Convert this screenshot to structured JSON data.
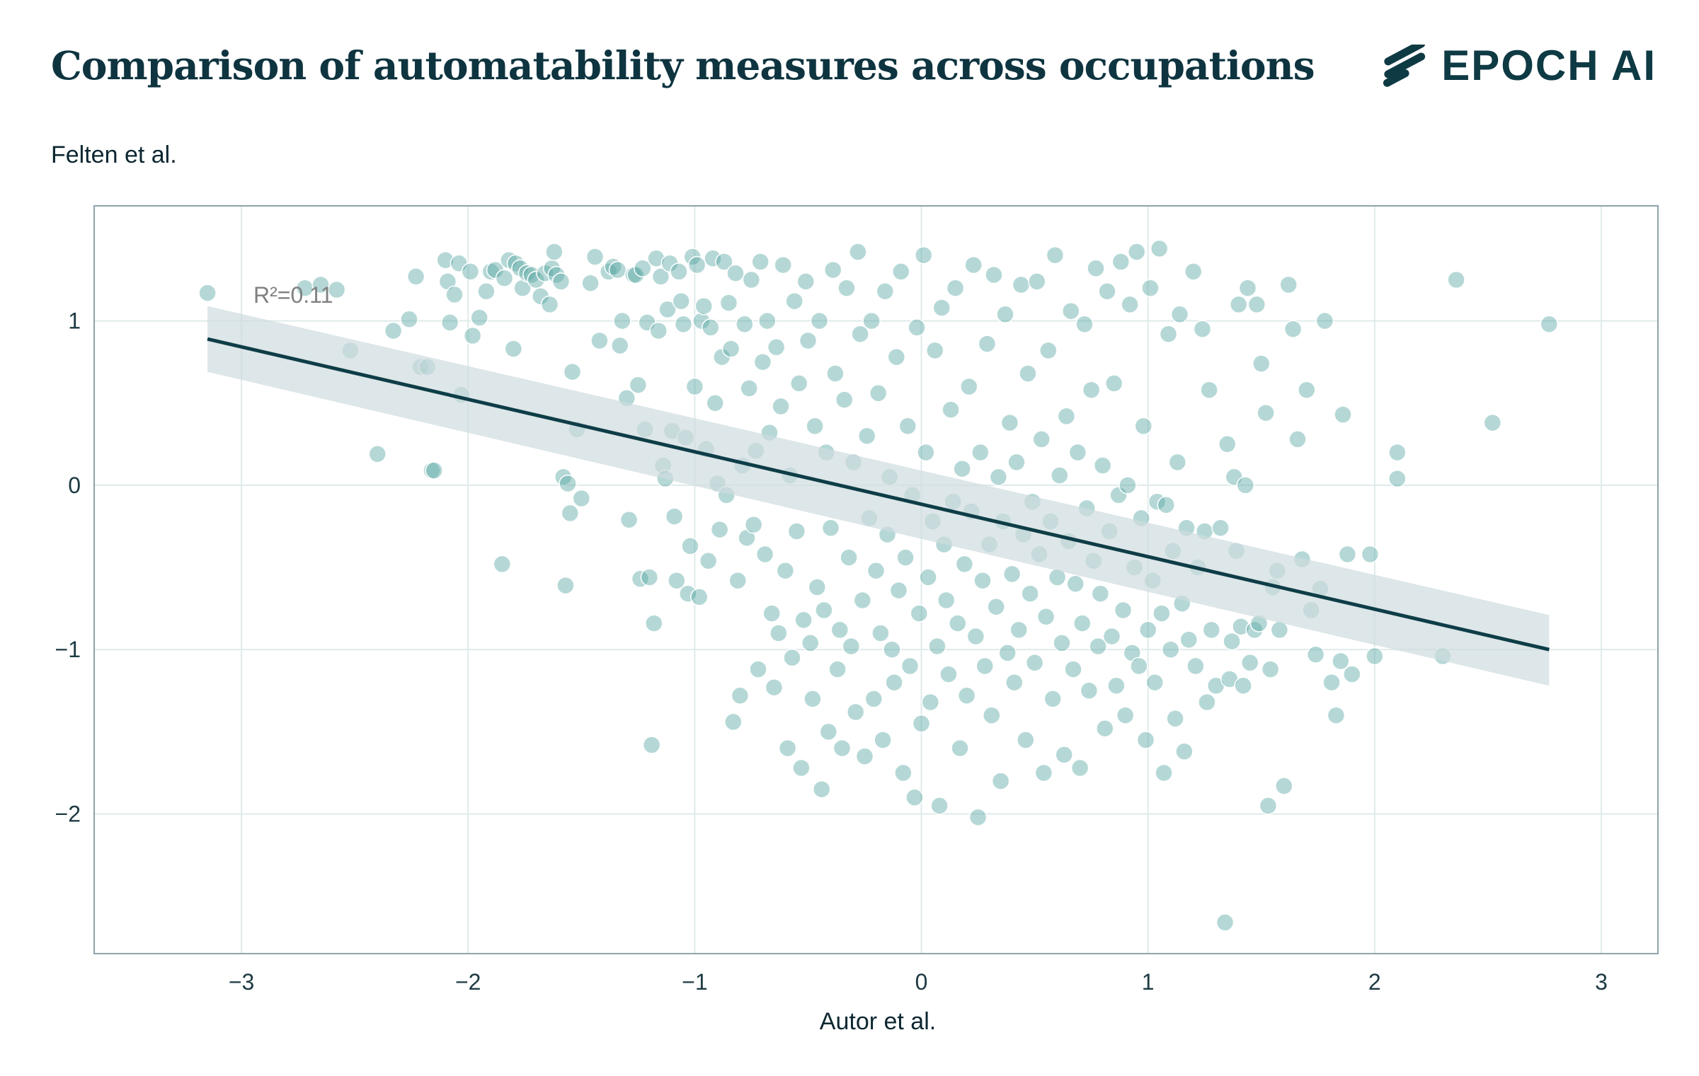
{
  "header": {
    "title": "Comparison of automatability measures across occupations",
    "logo_text": "EPOCH AI"
  },
  "chart_data": {
    "type": "scatter",
    "title": "Comparison of automatability measures across occupations",
    "xlabel": "Autor et al.",
    "ylabel": "Felten et al.",
    "xlim": [
      -3.65,
      3.25
    ],
    "ylim": [
      -2.85,
      1.7
    ],
    "xticks": [
      -3,
      -2,
      -1,
      0,
      1,
      2,
      3
    ],
    "yticks": [
      1,
      0,
      -1,
      -2
    ],
    "x_tick_labels": [
      "−3",
      "−2",
      "−1",
      "0",
      "1",
      "2",
      "3"
    ],
    "y_tick_labels": [
      "1",
      "0",
      "−1",
      "−2"
    ],
    "annotation": "R²=0.11",
    "grid": true,
    "point_color": "#5aa9a5",
    "line_color": "#0e3d47",
    "band_color": "#cfdcde",
    "regression": {
      "x": [
        -3.15,
        2.77
      ],
      "y": [
        0.89,
        -1.0
      ]
    },
    "confidence_band": {
      "x": [
        -3.15,
        2.77
      ],
      "upper": [
        1.09,
        -0.79
      ],
      "lower": [
        0.69,
        -1.22
      ]
    },
    "points": [
      [
        -3.15,
        1.17
      ],
      [
        -2.72,
        1.2
      ],
      [
        -2.65,
        1.22
      ],
      [
        -2.58,
        1.19
      ],
      [
        -2.52,
        0.82
      ],
      [
        -2.4,
        0.19
      ],
      [
        -2.33,
        0.94
      ],
      [
        -2.26,
        1.01
      ],
      [
        -2.23,
        1.27
      ],
      [
        -2.21,
        0.72
      ],
      [
        -2.18,
        0.72
      ],
      [
        -2.16,
        0.09
      ],
      [
        -2.15,
        0.09
      ],
      [
        -2.1,
        1.37
      ],
      [
        -2.09,
        1.24
      ],
      [
        -2.08,
        0.99
      ],
      [
        -2.06,
        1.16
      ],
      [
        -2.04,
        1.35
      ],
      [
        -2.03,
        0.55
      ],
      [
        -1.99,
        1.3
      ],
      [
        -1.98,
        0.91
      ],
      [
        -1.95,
        1.02
      ],
      [
        -1.92,
        1.18
      ],
      [
        -1.9,
        1.3
      ],
      [
        -1.88,
        1.31
      ],
      [
        -1.85,
        -0.48
      ],
      [
        -1.84,
        1.26
      ],
      [
        -1.82,
        1.37
      ],
      [
        -1.8,
        0.83
      ],
      [
        -1.79,
        1.35
      ],
      [
        -1.77,
        1.32
      ],
      [
        -1.76,
        1.2
      ],
      [
        -1.74,
        1.29
      ],
      [
        -1.72,
        1.28
      ],
      [
        -1.7,
        1.25
      ],
      [
        -1.68,
        1.15
      ],
      [
        -1.66,
        1.29
      ],
      [
        -1.64,
        1.1
      ],
      [
        -1.63,
        1.32
      ],
      [
        -1.62,
        1.42
      ],
      [
        -1.61,
        1.28
      ],
      [
        -1.59,
        1.24
      ],
      [
        -1.58,
        0.05
      ],
      [
        -1.57,
        -0.61
      ],
      [
        -1.56,
        0.01
      ],
      [
        -1.55,
        -0.17
      ],
      [
        -1.54,
        0.69
      ],
      [
        -1.52,
        0.34
      ],
      [
        -1.5,
        -0.08
      ],
      [
        -1.46,
        1.23
      ],
      [
        -1.44,
        1.39
      ],
      [
        -1.42,
        0.88
      ],
      [
        -1.38,
        1.3
      ],
      [
        -1.36,
        1.33
      ],
      [
        -1.34,
        1.31
      ],
      [
        -1.33,
        0.85
      ],
      [
        -1.32,
        1.0
      ],
      [
        -1.3,
        0.53
      ],
      [
        -1.29,
        -0.21
      ],
      [
        -1.27,
        1.28
      ],
      [
        -1.26,
        1.28
      ],
      [
        -1.25,
        0.61
      ],
      [
        -1.24,
        -0.57
      ],
      [
        -1.23,
        1.32
      ],
      [
        -1.22,
        0.34
      ],
      [
        -1.21,
        0.99
      ],
      [
        -1.2,
        -0.56
      ],
      [
        -1.19,
        -1.58
      ],
      [
        -1.18,
        -0.84
      ],
      [
        -1.17,
        1.38
      ],
      [
        -1.16,
        0.94
      ],
      [
        -1.15,
        1.27
      ],
      [
        -1.14,
        0.12
      ],
      [
        -1.13,
        0.04
      ],
      [
        -1.12,
        1.07
      ],
      [
        -1.11,
        1.35
      ],
      [
        -1.1,
        0.33
      ],
      [
        -1.09,
        -0.19
      ],
      [
        -1.08,
        -0.58
      ],
      [
        -1.07,
        1.3
      ],
      [
        -1.06,
        1.12
      ],
      [
        -1.05,
        0.98
      ],
      [
        -1.04,
        0.29
      ],
      [
        -1.03,
        -0.66
      ],
      [
        -1.02,
        -0.37
      ],
      [
        -1.01,
        1.39
      ],
      [
        -1.0,
        0.6
      ],
      [
        -0.99,
        1.34
      ],
      [
        -0.98,
        -0.68
      ],
      [
        -0.97,
        1.0
      ],
      [
        -0.96,
        1.09
      ],
      [
        -0.95,
        0.22
      ],
      [
        -0.94,
        -0.46
      ],
      [
        -0.93,
        0.96
      ],
      [
        -0.92,
        1.38
      ],
      [
        -0.91,
        0.5
      ],
      [
        -0.9,
        0.01
      ],
      [
        -0.89,
        -0.27
      ],
      [
        -0.88,
        0.78
      ],
      [
        -0.87,
        1.36
      ],
      [
        -0.86,
        -0.06
      ],
      [
        -0.85,
        1.11
      ],
      [
        -0.84,
        0.83
      ],
      [
        -0.83,
        -1.44
      ],
      [
        -0.82,
        1.29
      ],
      [
        -0.81,
        -0.58
      ],
      [
        -0.8,
        -1.28
      ],
      [
        -0.79,
        0.12
      ],
      [
        -0.78,
        0.98
      ],
      [
        -0.77,
        -0.32
      ],
      [
        -0.76,
        0.59
      ],
      [
        -0.75,
        1.25
      ],
      [
        -0.74,
        -0.24
      ],
      [
        -0.73,
        0.21
      ],
      [
        -0.72,
        -1.12
      ],
      [
        -0.71,
        1.36
      ],
      [
        -0.7,
        0.75
      ],
      [
        -0.69,
        -0.42
      ],
      [
        -0.68,
        1.0
      ],
      [
        -0.67,
        0.32
      ],
      [
        -0.66,
        -0.78
      ],
      [
        -0.65,
        -1.23
      ],
      [
        -0.64,
        0.84
      ],
      [
        -0.63,
        -0.9
      ],
      [
        -0.62,
        0.48
      ],
      [
        -0.61,
        1.34
      ],
      [
        -0.6,
        -0.52
      ],
      [
        -0.59,
        -1.6
      ],
      [
        -0.58,
        0.06
      ],
      [
        -0.57,
        -1.05
      ],
      [
        -0.56,
        1.12
      ],
      [
        -0.55,
        -0.28
      ],
      [
        -0.54,
        0.62
      ],
      [
        -0.53,
        -1.72
      ],
      [
        -0.52,
        -0.82
      ],
      [
        -0.51,
        1.24
      ],
      [
        -0.5,
        0.88
      ],
      [
        -0.49,
        -0.96
      ],
      [
        -0.48,
        -1.3
      ],
      [
        -0.47,
        0.36
      ],
      [
        -0.46,
        -0.62
      ],
      [
        -0.45,
        1.0
      ],
      [
        -0.44,
        -1.85
      ],
      [
        -0.43,
        -0.76
      ],
      [
        -0.42,
        0.2
      ],
      [
        -0.41,
        -1.5
      ],
      [
        -0.4,
        -0.26
      ],
      [
        -0.39,
        1.31
      ],
      [
        -0.38,
        0.68
      ],
      [
        -0.37,
        -1.12
      ],
      [
        -0.36,
        -0.88
      ],
      [
        -0.35,
        -1.6
      ],
      [
        -0.34,
        0.52
      ],
      [
        -0.33,
        1.2
      ],
      [
        -0.32,
        -0.44
      ],
      [
        -0.31,
        -0.98
      ],
      [
        -0.3,
        0.14
      ],
      [
        -0.29,
        -1.38
      ],
      [
        -0.28,
        1.42
      ],
      [
        -0.27,
        0.92
      ],
      [
        -0.26,
        -0.7
      ],
      [
        -0.25,
        -1.65
      ],
      [
        -0.24,
        0.3
      ],
      [
        -0.23,
        -0.2
      ],
      [
        -0.22,
        1.0
      ],
      [
        -0.21,
        -1.3
      ],
      [
        -0.2,
        -0.52
      ],
      [
        -0.19,
        0.56
      ],
      [
        -0.18,
        -0.9
      ],
      [
        -0.17,
        -1.55
      ],
      [
        -0.16,
        1.18
      ],
      [
        -0.15,
        -0.3
      ],
      [
        -0.14,
        0.05
      ],
      [
        -0.13,
        -1.0
      ],
      [
        -0.12,
        -1.2
      ],
      [
        -0.11,
        0.78
      ],
      [
        -0.1,
        -0.64
      ],
      [
        -0.09,
        1.3
      ],
      [
        -0.08,
        -1.75
      ],
      [
        -0.07,
        -0.44
      ],
      [
        -0.06,
        0.36
      ],
      [
        -0.05,
        -1.1
      ],
      [
        -0.04,
        -0.06
      ],
      [
        -0.03,
        -1.9
      ],
      [
        -0.02,
        0.96
      ],
      [
        -0.01,
        -0.78
      ],
      [
        0.0,
        -1.45
      ],
      [
        0.01,
        1.4
      ],
      [
        0.02,
        0.2
      ],
      [
        0.03,
        -0.56
      ],
      [
        0.04,
        -1.32
      ],
      [
        0.05,
        -0.22
      ],
      [
        0.06,
        0.82
      ],
      [
        0.07,
        -0.98
      ],
      [
        0.08,
        -1.95
      ],
      [
        0.09,
        1.08
      ],
      [
        0.1,
        -0.36
      ],
      [
        0.11,
        -0.7
      ],
      [
        0.12,
        -1.15
      ],
      [
        0.13,
        0.46
      ],
      [
        0.14,
        -0.1
      ],
      [
        0.15,
        1.2
      ],
      [
        0.16,
        -0.84
      ],
      [
        0.17,
        -1.6
      ],
      [
        0.18,
        0.1
      ],
      [
        0.19,
        -0.48
      ],
      [
        0.2,
        -1.28
      ],
      [
        0.21,
        0.6
      ],
      [
        0.22,
        -0.16
      ],
      [
        0.23,
        1.34
      ],
      [
        0.24,
        -0.92
      ],
      [
        0.25,
        -2.02
      ],
      [
        0.26,
        0.2
      ],
      [
        0.27,
        -0.58
      ],
      [
        0.28,
        -1.1
      ],
      [
        0.29,
        0.86
      ],
      [
        0.3,
        -0.36
      ],
      [
        0.31,
        -1.4
      ],
      [
        0.32,
        1.28
      ],
      [
        0.33,
        -0.74
      ],
      [
        0.34,
        0.05
      ],
      [
        0.35,
        -1.8
      ],
      [
        0.36,
        -0.22
      ],
      [
        0.37,
        1.04
      ],
      [
        0.38,
        -1.02
      ],
      [
        0.39,
        0.38
      ],
      [
        0.4,
        -0.54
      ],
      [
        0.41,
        -1.2
      ],
      [
        0.42,
        0.14
      ],
      [
        0.43,
        -0.88
      ],
      [
        0.44,
        1.22
      ],
      [
        0.45,
        -0.3
      ],
      [
        0.46,
        -1.55
      ],
      [
        0.47,
        0.68
      ],
      [
        0.48,
        -0.66
      ],
      [
        0.49,
        -0.1
      ],
      [
        0.5,
        -1.08
      ],
      [
        0.51,
        1.24
      ],
      [
        0.52,
        -0.42
      ],
      [
        0.53,
        0.28
      ],
      [
        0.54,
        -1.75
      ],
      [
        0.55,
        -0.8
      ],
      [
        0.56,
        0.82
      ],
      [
        0.57,
        -0.22
      ],
      [
        0.58,
        -1.3
      ],
      [
        0.59,
        1.4
      ],
      [
        0.6,
        -0.56
      ],
      [
        0.61,
        0.06
      ],
      [
        0.62,
        -0.96
      ],
      [
        0.63,
        -1.64
      ],
      [
        0.64,
        0.42
      ],
      [
        0.65,
        -0.34
      ],
      [
        0.66,
        1.06
      ],
      [
        0.67,
        -1.12
      ],
      [
        0.68,
        -0.6
      ],
      [
        0.69,
        0.2
      ],
      [
        0.7,
        -1.72
      ],
      [
        0.71,
        -0.84
      ],
      [
        0.72,
        0.98
      ],
      [
        0.73,
        -0.14
      ],
      [
        0.74,
        -1.25
      ],
      [
        0.75,
        0.58
      ],
      [
        0.76,
        -0.46
      ],
      [
        0.77,
        1.32
      ],
      [
        0.78,
        -0.98
      ],
      [
        0.79,
        -0.66
      ],
      [
        0.8,
        0.12
      ],
      [
        0.81,
        -1.48
      ],
      [
        0.82,
        1.18
      ],
      [
        0.83,
        -0.28
      ],
      [
        0.84,
        -0.92
      ],
      [
        0.85,
        0.62
      ],
      [
        0.86,
        -1.22
      ],
      [
        0.87,
        -0.06
      ],
      [
        0.88,
        1.36
      ],
      [
        0.89,
        -0.76
      ],
      [
        0.9,
        -1.4
      ],
      [
        0.91,
        0.0
      ],
      [
        0.92,
        1.1
      ],
      [
        0.93,
        -1.02
      ],
      [
        0.94,
        -0.5
      ],
      [
        0.95,
        1.42
      ],
      [
        0.96,
        -1.1
      ],
      [
        0.97,
        -0.2
      ],
      [
        0.98,
        0.36
      ],
      [
        0.99,
        -1.55
      ],
      [
        1.0,
        -0.88
      ],
      [
        1.01,
        1.2
      ],
      [
        1.02,
        -0.58
      ],
      [
        1.03,
        -1.2
      ],
      [
        1.04,
        -0.1
      ],
      [
        1.05,
        1.44
      ],
      [
        1.06,
        -0.78
      ],
      [
        1.07,
        -1.75
      ],
      [
        1.08,
        -0.12
      ],
      [
        1.09,
        0.92
      ],
      [
        1.1,
        -1.0
      ],
      [
        1.11,
        -0.4
      ],
      [
        1.12,
        -1.42
      ],
      [
        1.13,
        0.14
      ],
      [
        1.14,
        1.04
      ],
      [
        1.15,
        -0.72
      ],
      [
        1.16,
        -1.62
      ],
      [
        1.17,
        -0.26
      ],
      [
        1.18,
        -0.94
      ],
      [
        1.2,
        1.3
      ],
      [
        1.21,
        -1.1
      ],
      [
        1.22,
        -0.5
      ],
      [
        1.24,
        0.95
      ],
      [
        1.25,
        -0.28
      ],
      [
        1.26,
        -1.32
      ],
      [
        1.27,
        0.58
      ],
      [
        1.28,
        -0.88
      ],
      [
        1.3,
        -1.22
      ],
      [
        1.32,
        -0.26
      ],
      [
        1.34,
        -2.66
      ],
      [
        1.35,
        0.25
      ],
      [
        1.36,
        -1.18
      ],
      [
        1.37,
        -0.95
      ],
      [
        1.38,
        0.05
      ],
      [
        1.39,
        -0.4
      ],
      [
        1.4,
        1.1
      ],
      [
        1.41,
        -0.86
      ],
      [
        1.42,
        -1.22
      ],
      [
        1.43,
        0.0
      ],
      [
        1.44,
        1.2
      ],
      [
        1.45,
        -1.08
      ],
      [
        1.47,
        -0.88
      ],
      [
        1.48,
        1.1
      ],
      [
        1.49,
        -0.84
      ],
      [
        1.5,
        0.74
      ],
      [
        1.52,
        0.44
      ],
      [
        1.53,
        -1.95
      ],
      [
        1.54,
        -1.12
      ],
      [
        1.55,
        -0.62
      ],
      [
        1.57,
        -0.52
      ],
      [
        1.58,
        -0.88
      ],
      [
        1.6,
        -1.83
      ],
      [
        1.62,
        1.22
      ],
      [
        1.64,
        0.95
      ],
      [
        1.66,
        0.28
      ],
      [
        1.68,
        -0.45
      ],
      [
        1.7,
        0.58
      ],
      [
        1.72,
        -0.76
      ],
      [
        1.74,
        -1.03
      ],
      [
        1.76,
        -0.63
      ],
      [
        1.78,
        1.0
      ],
      [
        1.81,
        -1.2
      ],
      [
        1.83,
        -1.4
      ],
      [
        1.85,
        -1.07
      ],
      [
        1.86,
        0.43
      ],
      [
        1.88,
        -0.42
      ],
      [
        1.9,
        -1.15
      ],
      [
        1.98,
        -0.42
      ],
      [
        2.0,
        -1.04
      ],
      [
        2.1,
        0.2
      ],
      [
        2.1,
        0.04
      ],
      [
        2.3,
        -1.04
      ],
      [
        2.36,
        1.25
      ],
      [
        2.52,
        0.38
      ],
      [
        2.77,
        0.98
      ]
    ]
  }
}
